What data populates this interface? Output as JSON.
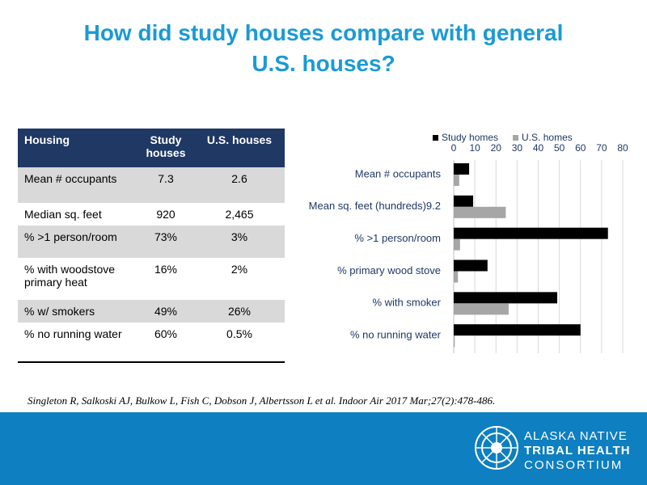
{
  "title": "How did study houses compare with general U.S. houses?",
  "table": {
    "header": [
      "Housing",
      "Study houses",
      "U.S. houses"
    ],
    "rows": [
      [
        "Mean # occupants",
        "7.3",
        "2.6"
      ],
      [
        "Median sq. feet",
        "920",
        "2,465"
      ],
      [
        "% >1 person/room",
        "73%",
        "3%"
      ],
      [
        "% with woodstove primary heat",
        "16%",
        "2%"
      ],
      [
        "% w/ smokers",
        "49%",
        "26%"
      ],
      [
        "% no running water",
        "60%",
        "0.5%"
      ]
    ]
  },
  "chart_data": {
    "type": "barh",
    "categories": [
      "Mean # occupants",
      "Mean sq. feet (hundreds)9.2",
      "% >1 person/room",
      "% primary wood stove",
      "% with smoker",
      "% no running water"
    ],
    "series": [
      {
        "name": "Study homes",
        "color": "#000000",
        "values": [
          7.3,
          9.2,
          73,
          16,
          49,
          60
        ]
      },
      {
        "name": "U.S. homes",
        "color": "#a6a6a6",
        "values": [
          2.6,
          24.65,
          3,
          2,
          26,
          0.5
        ]
      }
    ],
    "xlim": [
      0,
      80
    ],
    "xticks": [
      0,
      10,
      20,
      30,
      40,
      50,
      60,
      70,
      80
    ],
    "grid": true,
    "legend": "top"
  },
  "citation": "Singleton R, Salkoski AJ, Bulkow L, Fish C, Dobson J, Albertsson L et al.  Indoor Air 2017 Mar;27(2):478-486.",
  "logo": {
    "line1": "ALASKA NATIVE",
    "line2": "TRIBAL HEALTH",
    "line3": "CONSORTIUM"
  }
}
